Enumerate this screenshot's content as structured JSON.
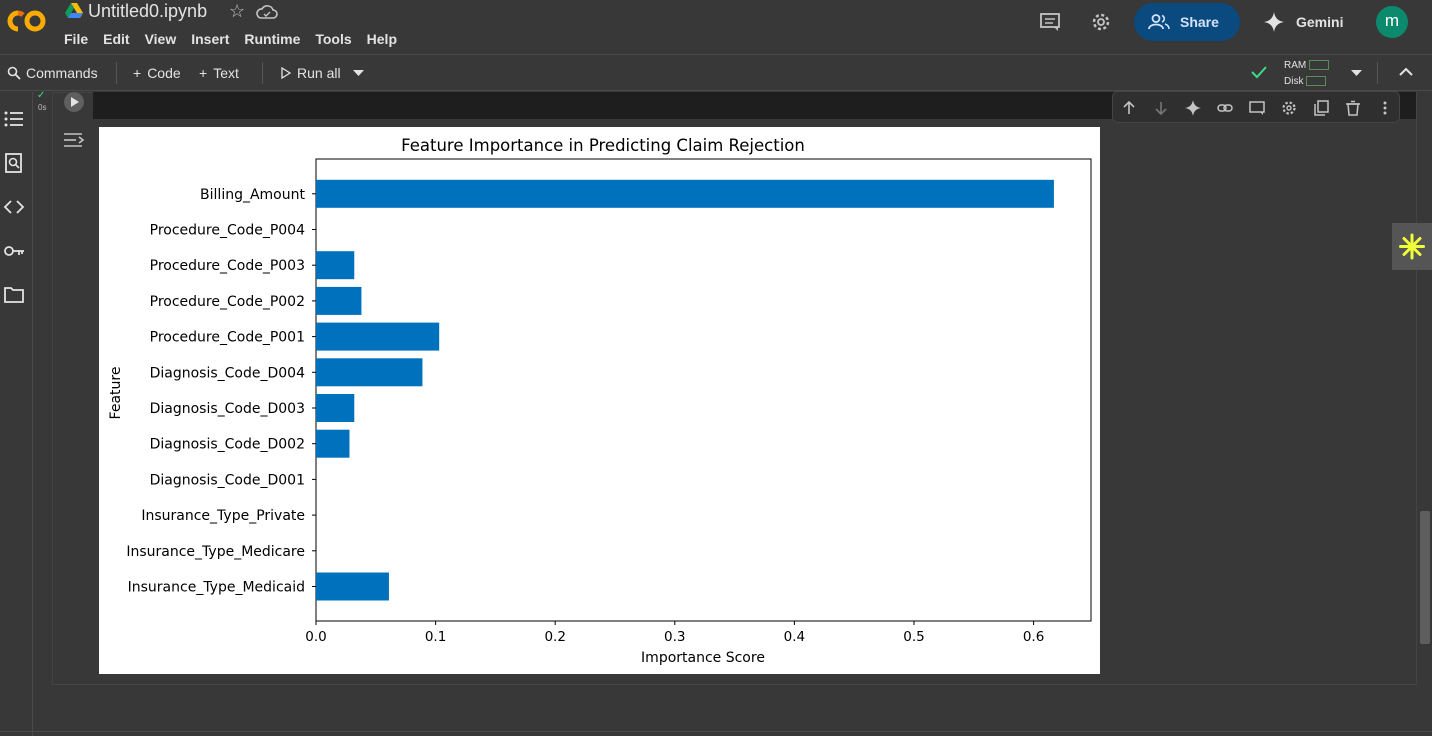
{
  "header": {
    "title": "Untitled0.ipynb",
    "menu": [
      "File",
      "Edit",
      "View",
      "Insert",
      "Runtime",
      "Tools",
      "Help"
    ],
    "share_label": "Share",
    "gemini_label": "Gemini",
    "avatar_letter": "m"
  },
  "toolbar": {
    "commands_label": "Commands",
    "code_label": "Code",
    "text_label": "Text",
    "run_all_label": "Run all",
    "ram_label": "RAM",
    "disk_label": "Disk"
  },
  "cell": {
    "exec_time": "0s"
  },
  "colors": {
    "bar": "#0072bd",
    "accent_share": "#0b4a7e",
    "avatar": "#0b8a6e",
    "status_ok": "#3ddc84"
  },
  "icons": [
    "colab-logo-icon",
    "drive-icon",
    "star-icon",
    "cloud-icon",
    "comment-icon",
    "gear-icon",
    "people-icon",
    "sparkle-icon",
    "search-icon",
    "play-icon",
    "chevron-down-icon",
    "chevron-up-icon",
    "toc-icon",
    "find-icon",
    "code-icon",
    "key-icon",
    "folder-icon",
    "arrow-up-icon",
    "arrow-down-icon",
    "link-icon",
    "mirror-icon",
    "trash-icon",
    "more-vert-icon",
    "output-toggle-icon"
  ],
  "chart_data": {
    "type": "bar",
    "orientation": "horizontal",
    "title": "Feature Importance in Predicting Claim Rejection",
    "xlabel": "Importance Score",
    "ylabel": "Feature",
    "categories": [
      "Insurance_Type_Medicaid",
      "Insurance_Type_Medicare",
      "Insurance_Type_Private",
      "Diagnosis_Code_D001",
      "Diagnosis_Code_D002",
      "Diagnosis_Code_D003",
      "Diagnosis_Code_D004",
      "Procedure_Code_P001",
      "Procedure_Code_P002",
      "Procedure_Code_P003",
      "Procedure_Code_P004",
      "Billing_Amount"
    ],
    "values": [
      0.061,
      0,
      0,
      0,
      0.028,
      0.032,
      0.089,
      0.103,
      0.038,
      0.032,
      0,
      0.617
    ],
    "xlim": [
      0,
      0.648
    ],
    "xticks": [
      0.0,
      0.1,
      0.2,
      0.3,
      0.4,
      0.5,
      0.6
    ],
    "xtick_labels": [
      "0.0",
      "0.1",
      "0.2",
      "0.3",
      "0.4",
      "0.5",
      "0.6"
    ],
    "grid": false
  }
}
